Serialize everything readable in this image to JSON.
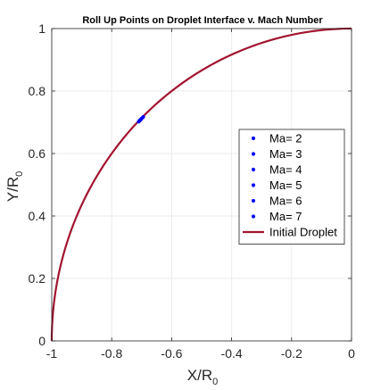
{
  "chart_data": {
    "type": "scatter",
    "title": "Roll Up Points on Droplet Interface v. Mach Number",
    "xlabel": {
      "main": "X/R",
      "sub": "0"
    },
    "ylabel": {
      "main": "Y/R",
      "sub": "0"
    },
    "xlim": [
      -1,
      0
    ],
    "ylim": [
      0,
      1
    ],
    "xticks": [
      -1,
      -0.8,
      -0.6,
      -0.4,
      -0.2,
      0
    ],
    "xtick_labels": [
      "-1",
      "-0.8",
      "-0.6",
      "-0.4",
      "-0.2",
      "0"
    ],
    "yticks": [
      0,
      0.2,
      0.4,
      0.6,
      0.8,
      1
    ],
    "ytick_labels": [
      "0",
      "0.2",
      "0.4",
      "0.6",
      "0.8",
      "1"
    ],
    "grid": true,
    "legend_position": "right",
    "series": [
      {
        "name": "Ma= 2",
        "kind": "points",
        "color": "#0000ff",
        "points": [
          [
            -0.695,
            0.717
          ]
        ]
      },
      {
        "name": "Ma= 3",
        "kind": "points",
        "color": "#0000ff",
        "points": [
          [
            -0.7,
            0.712
          ]
        ]
      },
      {
        "name": "Ma= 4",
        "kind": "points",
        "color": "#0000ff",
        "points": [
          [
            -0.703,
            0.709
          ]
        ]
      },
      {
        "name": "Ma= 5",
        "kind": "points",
        "color": "#0000ff",
        "points": [
          [
            -0.705,
            0.707
          ]
        ]
      },
      {
        "name": "Ma= 6",
        "kind": "points",
        "color": "#0000ff",
        "points": [
          [
            -0.707,
            0.705
          ]
        ]
      },
      {
        "name": "Ma= 7",
        "kind": "points",
        "color": "#0000ff",
        "points": [
          [
            -0.71,
            0.702
          ]
        ]
      },
      {
        "name": "Initial Droplet",
        "kind": "curve",
        "shape": "quarter-circle, radius 1, centered at (0, 0)",
        "color": "#a2142f"
      }
    ]
  }
}
